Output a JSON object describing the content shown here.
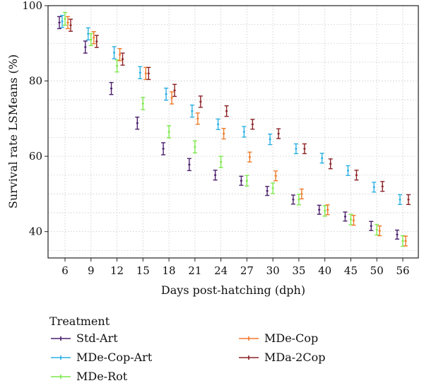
{
  "chart_data": {
    "type": "scatter",
    "title": "",
    "xlabel": "Days post-hatching (dph)",
    "ylabel": "Survival rate LSMeans (%)",
    "categories": [
      "6",
      "9",
      "12",
      "15",
      "18",
      "21",
      "24",
      "27",
      "30",
      "35",
      "40",
      "45",
      "50",
      "56"
    ],
    "ylim": [
      33,
      100
    ],
    "yticks": [
      40,
      60,
      80,
      100
    ],
    "grid": "dotted",
    "legend": {
      "title": "Treatment",
      "placement": "bottom"
    },
    "series": [
      {
        "name": "Std-Art",
        "color": "#4a1f6b",
        "values": [
          95.5,
          89.0,
          78.0,
          68.8,
          62.0,
          57.8,
          55.0,
          53.5,
          50.8,
          48.5,
          45.8,
          44.0,
          41.5,
          39.2
        ],
        "err": [
          1.6,
          1.6,
          1.6,
          1.6,
          1.6,
          1.6,
          1.3,
          1.2,
          1.2,
          1.2,
          1.2,
          1.2,
          1.2,
          1.2
        ]
      },
      {
        "name": "MDe-Cop-Art",
        "color": "#2ab0e2",
        "values": [
          95.8,
          92.5,
          87.5,
          82.2,
          76.5,
          72.0,
          68.5,
          66.5,
          64.5,
          62.0,
          59.5,
          56.2,
          51.8,
          48.5
        ],
        "err": [
          1.6,
          1.6,
          1.6,
          1.6,
          1.6,
          1.6,
          1.4,
          1.4,
          1.4,
          1.3,
          1.3,
          1.3,
          1.3,
          1.3
        ]
      },
      {
        "name": "MDe-Rot",
        "color": "#7be84a",
        "values": [
          96.5,
          91.0,
          84.0,
          74.0,
          66.5,
          62.5,
          58.5,
          53.5,
          51.5,
          48.5,
          45.5,
          43.2,
          40.5,
          37.5
        ],
        "err": [
          1.7,
          1.6,
          1.6,
          1.6,
          1.6,
          1.6,
          1.5,
          1.4,
          1.4,
          1.4,
          1.4,
          1.4,
          1.4,
          1.4
        ]
      },
      {
        "name": "MDe-Cop",
        "color": "#f07a28",
        "values": [
          95.5,
          91.5,
          87.0,
          82.0,
          75.5,
          70.0,
          66.0,
          59.8,
          54.8,
          50.0,
          45.8,
          43.0,
          40.2,
          37.5
        ],
        "err": [
          1.6,
          1.6,
          1.6,
          1.6,
          1.6,
          1.5,
          1.4,
          1.3,
          1.3,
          1.3,
          1.3,
          1.3,
          1.3,
          1.3
        ]
      },
      {
        "name": "MDa-2Cop",
        "color": "#8b2226",
        "values": [
          94.8,
          90.5,
          85.8,
          82.0,
          77.5,
          74.5,
          72.0,
          68.5,
          66.0,
          62.0,
          58.0,
          55.0,
          52.0,
          48.5
        ],
        "err": [
          1.6,
          1.6,
          1.6,
          1.6,
          1.6,
          1.5,
          1.4,
          1.3,
          1.3,
          1.3,
          1.3,
          1.3,
          1.3,
          1.3
        ]
      }
    ]
  }
}
